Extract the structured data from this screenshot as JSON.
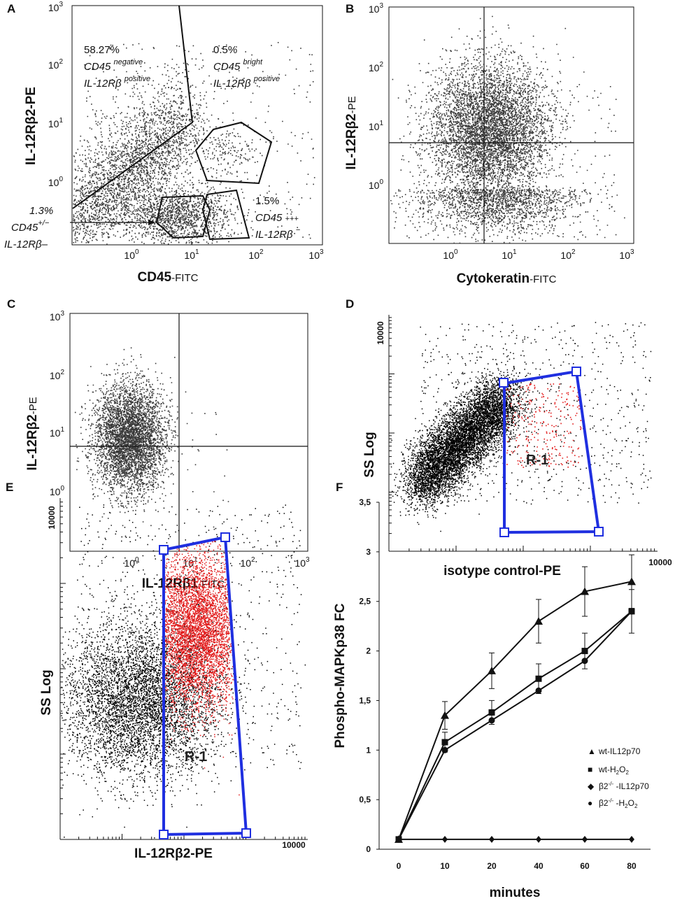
{
  "panels": {
    "A": {
      "label": "A",
      "x_axis_main": "CD45",
      "x_axis_suffix": "-FITC",
      "y_axis": "IL-12Rβ2-PE",
      "x_ticks": [
        {
          "base": "10",
          "exp": "0"
        },
        {
          "base": "10",
          "exp": "1"
        },
        {
          "base": "10",
          "exp": "2"
        },
        {
          "base": "10",
          "exp": "3"
        }
      ],
      "y_ticks": [
        {
          "base": "10",
          "exp": "0"
        },
        {
          "base": "10",
          "exp": "1"
        },
        {
          "base": "10",
          "exp": "2"
        },
        {
          "base": "10",
          "exp": "3"
        }
      ],
      "gate1_pct": "58.27%",
      "gate1_l2_main": "CD45 ",
      "gate1_l2_sup": "negative",
      "gate1_l3_main": "IL-12Rβ ",
      "gate1_l3_sup": "positive",
      "gate2_pct": "0.5%",
      "gate2_l2_main": "CD45 ",
      "gate2_l2_sup": "bright",
      "gate2_l3_main": "IL-12Rβ ",
      "gate2_l3_sup": "positive",
      "gate3_pct": "1.5%",
      "gate3_l2_main": "CD45 ",
      "gate3_l2_sup": "+++",
      "gate3_l3_main": "IL-12Rβ ",
      "gate3_l3_sup": "−",
      "gate4_pct": "1.3%",
      "gate4_l2_main": "CD45",
      "gate4_l2_sup": "+/−",
      "gate4_l3": "IL-12Rβ–"
    },
    "B": {
      "label": "B",
      "x_axis_main": "Cytokeratin",
      "x_axis_suffix": "-FITC",
      "y_axis_main": "IL-12Rβ2",
      "y_axis_suffix": "-PE",
      "x_ticks": [
        {
          "base": "10",
          "exp": "0"
        },
        {
          "base": "10",
          "exp": "1"
        },
        {
          "base": "10",
          "exp": "2"
        },
        {
          "base": "10",
          "exp": "3"
        }
      ],
      "y_ticks": [
        {
          "base": "10",
          "exp": "0"
        },
        {
          "base": "10",
          "exp": "1"
        },
        {
          "base": "10",
          "exp": "2"
        },
        {
          "base": "10",
          "exp": "3"
        }
      ]
    },
    "C": {
      "label": "C",
      "x_axis_main": "IL-12Rβ1",
      "x_axis_suffix": "-FITC",
      "y_axis_main": "IL-12Rβ2",
      "y_axis_suffix": "-PE",
      "x_ticks": [
        {
          "base": "10",
          "exp": "0"
        },
        {
          "base": "10",
          "exp": "1"
        },
        {
          "base": "10",
          "exp": "2"
        },
        {
          "base": "10",
          "exp": "3"
        }
      ],
      "y_ticks": [
        {
          "base": "10",
          "exp": "0"
        },
        {
          "base": "10",
          "exp": "1"
        },
        {
          "base": "10",
          "exp": "2"
        },
        {
          "base": "10",
          "exp": "3"
        }
      ]
    },
    "D": {
      "label": "D",
      "x_axis": "isotype control-PE",
      "y_axis": "SS Log",
      "y_max_tick": "10000",
      "x_max_tick": "10000",
      "gate_label": "R-1"
    },
    "E": {
      "label": "E",
      "x_axis": "IL-12Rβ2-PE",
      "y_axis": "SS Log",
      "y_max_tick": "10000",
      "x_max_tick": "10000",
      "gate_label": "R-1"
    },
    "F": {
      "label": "F",
      "significance_mark": "*",
      "legend": [
        {
          "marker": "▲",
          "text": "wt-IL12p70"
        },
        {
          "marker": "■",
          "main": "wt-H",
          "sub1": "2",
          "mid": "O",
          "sub2": "2"
        },
        {
          "marker": "◆",
          "main": "β2",
          "sup": "-/-",
          "tail": " -IL12p70"
        },
        {
          "marker": "●",
          "main": "β2",
          "sup": "-/-",
          "tail": " -H",
          "sub1": "2",
          "mid": "O",
          "sub2": "2"
        }
      ]
    }
  },
  "chart_data": [
    {
      "panel": "F",
      "type": "line",
      "title": "",
      "xlabel": "minutes",
      "ylabel": "Phospho-MAPKp38 FC",
      "x": [
        0,
        10,
        20,
        40,
        60,
        80
      ],
      "x_tick_labels": [
        "0",
        "10",
        "20",
        "40",
        "60",
        "80"
      ],
      "y_tick_labels": [
        "0",
        "0,5",
        "1",
        "1,5",
        "2",
        "2,5",
        "3",
        "3,5"
      ],
      "ylim": [
        0,
        3.5
      ],
      "series": [
        {
          "name": "wt-IL12p70",
          "marker": "triangle",
          "values": [
            0.1,
            1.35,
            1.8,
            2.3,
            2.6,
            2.7
          ],
          "errors": [
            0,
            0.14,
            0.18,
            0.22,
            0.25,
            0.27
          ]
        },
        {
          "name": "wt-H2O2",
          "marker": "square",
          "values": [
            0.1,
            1.08,
            1.38,
            1.72,
            2.0,
            2.4
          ],
          "errors": [
            0,
            0.1,
            0.12,
            0.15,
            0.18,
            0.22
          ]
        },
        {
          "name": "β2-/- -IL12p70",
          "marker": "diamond",
          "values": [
            0.1,
            0.1,
            0.1,
            0.1,
            0.1,
            0.1
          ],
          "errors": [
            0,
            0,
            0,
            0,
            0,
            0
          ]
        },
        {
          "name": "β2-/- -H2O2",
          "marker": "circle",
          "values": [
            0.1,
            1.0,
            1.3,
            1.6,
            1.9,
            2.4
          ],
          "errors": [
            0,
            0.08,
            0.1,
            0.12,
            0.15,
            0.2
          ]
        }
      ]
    }
  ],
  "colors": {
    "dots": "#3a3a3a",
    "black_dots": "#000000",
    "red_dots": "#e21b1b",
    "gate_blue": "#1f2fe0"
  }
}
